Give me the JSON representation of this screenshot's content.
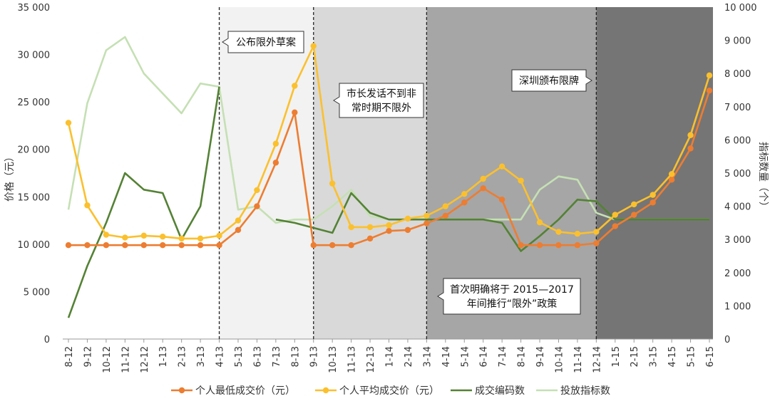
{
  "chart_data": {
    "type": "line",
    "title": "",
    "ylabel_left": "价格（元）",
    "ylabel_right": "指标数量（个）",
    "ylim_left": [
      0,
      35000
    ],
    "ylim_right": [
      0,
      10000
    ],
    "yticks_left": [
      "0",
      "5 000",
      "10 000",
      "15 000",
      "20 000",
      "25 000",
      "30 000",
      "35 000"
    ],
    "yticks_right": [
      "0",
      "1 000",
      "2 000",
      "3 000",
      "4 000",
      "5 000",
      "6 000",
      "7 000",
      "8 000",
      "9 000",
      "10 000"
    ],
    "categories": [
      "8-12",
      "9-12",
      "10-12",
      "11-12",
      "12-12",
      "1-13",
      "2-13",
      "3-13",
      "4-13",
      "5-13",
      "6-13",
      "7-13",
      "8-13",
      "9-13",
      "10-13",
      "11-13",
      "12-13",
      "1-14",
      "2-14",
      "3-14",
      "4-14",
      "5-14",
      "6-14",
      "7-14",
      "8-14",
      "9-14",
      "10-14",
      "11-14",
      "12-14",
      "1-15",
      "2-15",
      "3-15",
      "4-15",
      "5-15",
      "6-15"
    ],
    "series": [
      {
        "name": "个人最低成交价（元）",
        "axis": "left",
        "color": "#ED7D31",
        "values": [
          9900,
          9900,
          9900,
          9900,
          9900,
          9900,
          9900,
          9900,
          9900,
          11500,
          14000,
          18600,
          23900,
          9900,
          9900,
          9900,
          10600,
          11400,
          11500,
          12200,
          13000,
          14400,
          15900,
          14700,
          9900,
          9900,
          9900,
          9900,
          10100,
          11900,
          13100,
          14400,
          16800,
          20100,
          26200
        ]
      },
      {
        "name": "个人平均成交价（元）",
        "axis": "left",
        "color": "#FBC02D",
        "values": [
          22800,
          14100,
          11000,
          10700,
          10900,
          10800,
          10600,
          10600,
          10900,
          12500,
          15700,
          20600,
          26700,
          30900,
          16400,
          11800,
          11800,
          12000,
          12700,
          13000,
          14000,
          15300,
          16900,
          18200,
          16700,
          12300,
          11300,
          11100,
          11300,
          13100,
          14200,
          15200,
          17400,
          21500,
          27800
        ]
      },
      {
        "name": "成交编码数",
        "axis": "right",
        "color": "#548235",
        "values": [
          640,
          2200,
          3500,
          5000,
          4500,
          4400,
          3000,
          4000,
          7600,
          null,
          null,
          3600,
          3500,
          3350,
          3200,
          4400,
          3800,
          3600,
          3600,
          3600,
          3600,
          3600,
          3600,
          3500,
          2650,
          3100,
          3600,
          4200,
          4150,
          3600,
          3600,
          3600,
          3600,
          3600,
          3600
        ]
      },
      {
        "name": "投放指标数",
        "axis": "right",
        "color": "#C5E0B4",
        "values": [
          3900,
          7100,
          8700,
          9100,
          8000,
          7400,
          6800,
          7700,
          7600,
          3900,
          4000,
          3500,
          3600,
          3600,
          4000,
          4500,
          3700,
          3600,
          3600,
          3600,
          3600,
          3600,
          3600,
          3600,
          3600,
          4500,
          4900,
          4800,
          3800,
          3600,
          3600,
          3600,
          3600,
          3600,
          3600
        ]
      }
    ],
    "periods": [
      {
        "from": "4-13",
        "to": "9-13",
        "shade": "#F2F2F2"
      },
      {
        "from": "9-13",
        "to": "3-14",
        "shade": "#D9D9D9"
      },
      {
        "from": "3-14",
        "to": "12-14",
        "shade": "#A6A6A6"
      },
      {
        "from": "12-14",
        "to": "6-15",
        "shade": "#757575"
      }
    ],
    "annotations": [
      {
        "text": [
          "公布限外草案"
        ],
        "at": "4-13"
      },
      {
        "text": [
          "市长发话不到非",
          "常时期不限外"
        ],
        "at": "9-13"
      },
      {
        "text": [
          "首次明确将于 2015—2017",
          "年间推行“限外”政策"
        ],
        "at": "3-14"
      },
      {
        "text": [
          "深圳颁布限牌"
        ],
        "at": "12-14"
      }
    ],
    "legend_position": "bottom"
  }
}
